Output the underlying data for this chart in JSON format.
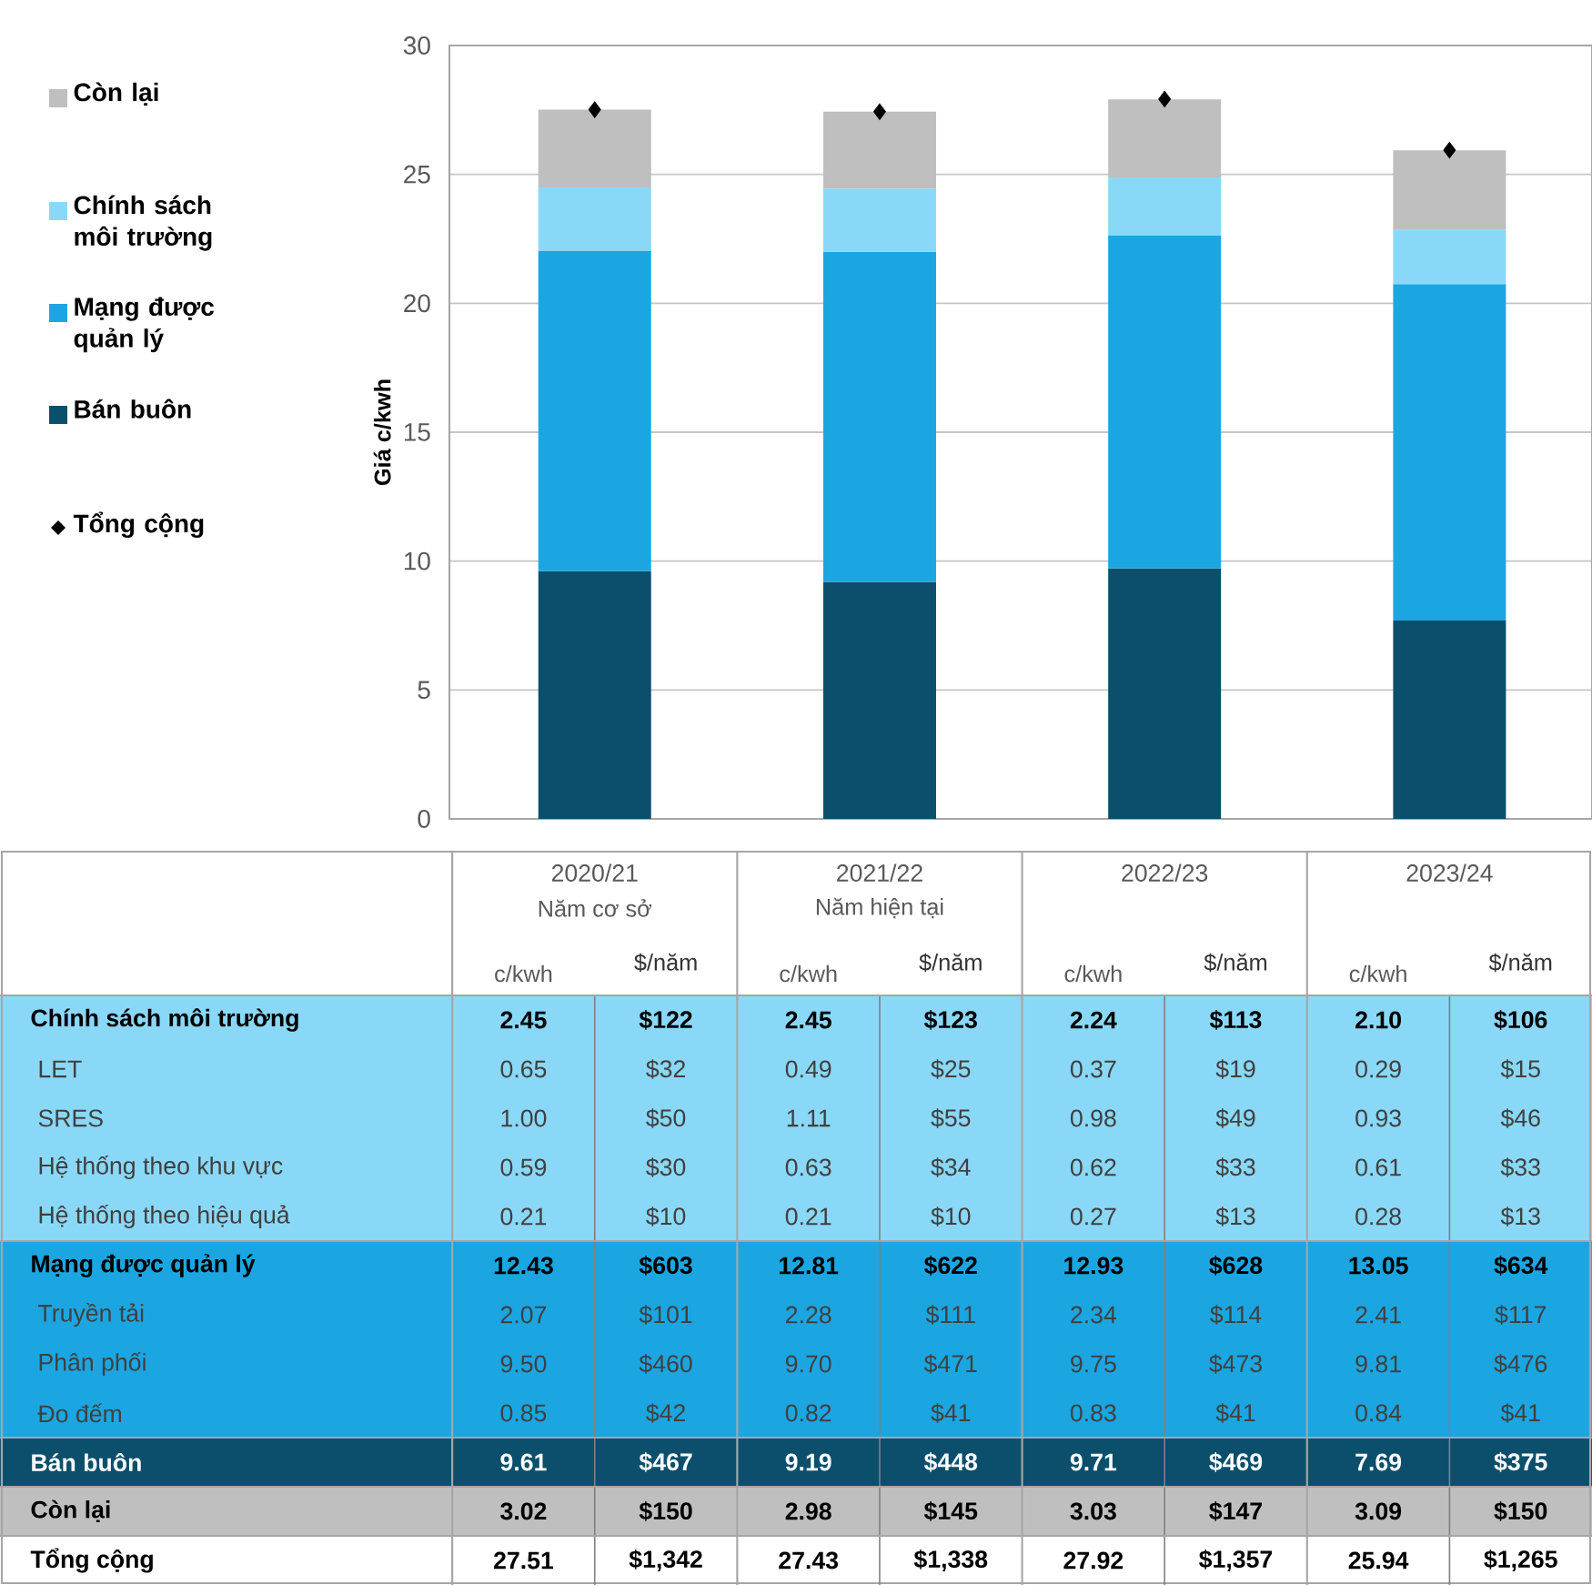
{
  "chart_data": {
    "type": "bar",
    "stacked": true,
    "categories": [
      "2020/21",
      "2021/22",
      "2022/23",
      "2023/24"
    ],
    "ylabel": "Giá c/kwh",
    "ylim": [
      0,
      30
    ],
    "yticks": [
      0,
      5,
      10,
      15,
      20,
      25,
      30
    ],
    "grid": "y",
    "legend": "left",
    "series": [
      {
        "name": "Bán buôn",
        "color": "#0b4f6c",
        "values": [
          9.61,
          9.19,
          9.71,
          7.69
        ],
        "value_labels": [
          "9.61",
          "9.19",
          "9.71",
          "7.69"
        ]
      },
      {
        "name": "Mạng được quản lý",
        "color": "#1ba6e2",
        "values": [
          12.43,
          12.81,
          12.93,
          13.05
        ],
        "value_labels": [
          "12.43",
          "12.81",
          "12.93",
          "13.05"
        ]
      },
      {
        "name": "Chính sách môi trường",
        "color": "#8ad8f8",
        "values": [
          2.45,
          2.45,
          2.24,
          2.1
        ],
        "value_labels": [
          "2.45",
          "2.45",
          "2.24",
          "2.10"
        ]
      },
      {
        "name": "Còn lại",
        "color": "#bfbfbf",
        "values": [
          3.02,
          2.98,
          3.03,
          3.09
        ],
        "value_labels": [
          "3.02",
          "2.98",
          "3.03",
          "3.09"
        ]
      },
      {
        "name": "Tổng cộng",
        "type": "scatter",
        "marker": "diamond",
        "color": "#000000",
        "values": [
          27.51,
          27.43,
          27.92,
          25.94
        ],
        "value_labels": [
          "27.51",
          "27.43",
          "27.92",
          "25.94"
        ]
      }
    ],
    "annotations": [
      "Năm cơ sở",
      "Năm hiện tại",
      "c/kwh",
      "$/năm",
      "$122",
      "$123",
      "$113",
      "$106",
      "LET",
      "0.65",
      "$32",
      "0.49",
      "$25",
      "0.37",
      "$19",
      "0.29",
      "$15",
      "SRES",
      "1.00",
      "$50",
      "1.11",
      "$55",
      "0.98",
      "$49",
      "0.93",
      "$46",
      "Hệ thống theo khu vực",
      "0.59",
      "$30",
      "0.63",
      "$34",
      "0.62",
      "$33",
      "0.61",
      "$33",
      "Hệ thống theo hiệu quả",
      "0.21",
      "$10",
      "0.21",
      "$10",
      "0.27",
      "$13",
      "0.28",
      "$13",
      "$603",
      "$622",
      "$628",
      "$634",
      "Truyền tải",
      "2.07",
      "$101",
      "2.28",
      "$111",
      "2.34",
      "$114",
      "2.41",
      "$117",
      "Phân phối",
      "9.50",
      "$460",
      "9.70",
      "$471",
      "9.75",
      "$473",
      "9.81",
      "$476",
      "Đo đếm",
      "0.85",
      "$42",
      "0.82",
      "$41",
      "0.83",
      "$41",
      "0.84",
      "$41",
      "$467",
      "$448",
      "$469",
      "$375",
      "$150",
      "$145",
      "$147",
      "$150",
      "$1,342",
      "$1,338",
      "$1,357",
      "$1,265"
    ]
  }
}
